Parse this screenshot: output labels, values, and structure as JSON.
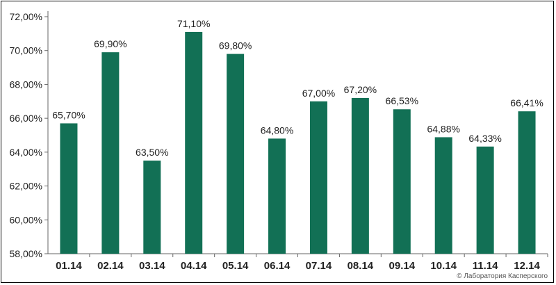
{
  "chart_data": {
    "type": "bar",
    "categories": [
      "01.14",
      "02.14",
      "03.14",
      "04.14",
      "05.14",
      "06.14",
      "07.14",
      "08.14",
      "09.14",
      "10.14",
      "11.14",
      "12.14"
    ],
    "values": [
      65.7,
      69.9,
      63.5,
      71.1,
      69.8,
      64.8,
      67.0,
      67.2,
      66.53,
      64.88,
      64.33,
      66.41
    ],
    "data_labels": [
      "65,70%",
      "69,90%",
      "63,50%",
      "71,10%",
      "69,80%",
      "64,80%",
      "67,00%",
      "67,20%",
      "66,53%",
      "64,88%",
      "64,33%",
      "66,41%"
    ],
    "ylim": [
      58,
      72
    ],
    "y_ticks": [
      58,
      60,
      62,
      64,
      66,
      68,
      70,
      72
    ],
    "y_tick_labels": [
      "58,00%",
      "60,00%",
      "62,00%",
      "64,00%",
      "66,00%",
      "68,00%",
      "70,00%",
      "72,00%"
    ],
    "bar_color": "#127055",
    "grid": false
  },
  "copyright": "© Лаборатория Касперского"
}
